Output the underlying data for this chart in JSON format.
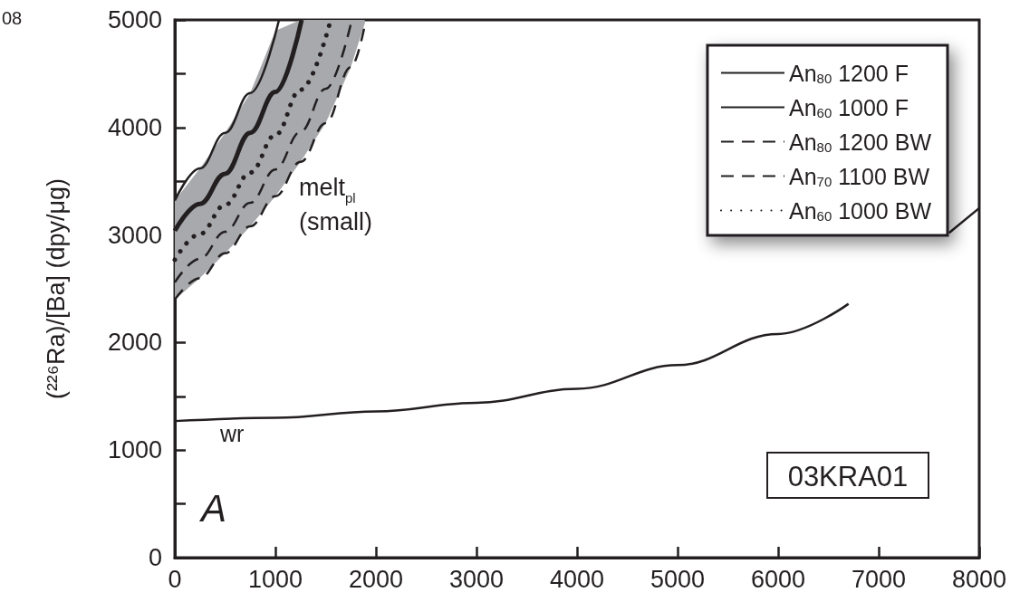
{
  "chart_data": {
    "type": "line",
    "ylabel": "(²²⁶Ra)/[Ba] (dpy/μg)",
    "xlim": [
      0,
      8000
    ],
    "xticks": [
      0,
      1000,
      2000,
      3000,
      4000,
      5000,
      6000,
      7000,
      8000
    ],
    "ylim": [
      0,
      5000
    ],
    "yticks": [
      0,
      {
        "value": 500,
        "label": null
      },
      1000,
      {
        "value": 1500,
        "label": null
      },
      2000,
      {
        "value": 2500,
        "label": null
      },
      3000,
      {
        "value": 3500,
        "label": null
      },
      4000,
      {
        "value": 4500,
        "label": null
      },
      5000
    ],
    "grid": false,
    "legend": "top right",
    "marker": "none",
    "series": [
      {
        "name": "An$_{80}$ 1200 F",
        "color": "#231f20",
        "line_style": "solid",
        "x": [
          0,
          250,
          500,
          750,
          1000,
          1261
        ],
        "values": [
          3040,
          3290,
          3570,
          3950,
          4330,
          5000
        ]
      },
      {
        "name": "An$_{60}$ 1000 F",
        "color": "#231f20",
        "line_style": "solid",
        "x": [
          0,
          250,
          500,
          750,
          1036
        ],
        "values": [
          3320,
          3620,
          3950,
          4320,
          5000
        ]
      },
      {
        "name": "An$_{80}$ 1200 BW",
        "color": "#231f20",
        "line_style": "dashed",
        "x": [
          0,
          250,
          500,
          750,
          1000,
          1250,
          1500,
          1750,
          1900
        ],
        "values": [
          2400,
          2600,
          2830,
          3080,
          3360,
          3680,
          4040,
          4560,
          5000
        ],
        "lower": [
          2400,
          2600,
          2830,
          3080,
          3360,
          3680,
          4040,
          4560,
          5000
        ],
        "upper": [
          3320,
          3620,
          3950,
          4320,
          4900,
          5000,
          5000,
          5000,
          5000
        ]
      },
      {
        "name": "An$_{70}$ 1100 BW",
        "color": "#231f20",
        "line_style": "dashed",
        "x": [
          0,
          250,
          500,
          750,
          1000,
          1250,
          1500,
          1760
        ],
        "values": [
          2560,
          2780,
          3030,
          3300,
          3610,
          3960,
          4360,
          5000
        ]
      },
      {
        "name": "An$_{60}$ 1000 BW",
        "color": "#231f20",
        "line_style": "dotted",
        "x": [
          0,
          250,
          500,
          750,
          1000,
          1250,
          1550
        ],
        "values": [
          2770,
          3010,
          3280,
          3580,
          3930,
          4350,
          5000
        ]
      },
      {
        "color": "#231f20",
        "line_style": "solid",
        "x": [
          0,
          1000,
          2000,
          3000,
          4000,
          5000,
          6000,
          6700,
          7000,
          7500,
          7700,
          8000
        ],
        "values": [
          1270,
          1300,
          1360,
          1440,
          1570,
          1790,
          2080,
          2360,
          null,
          null,
          3020,
          3250
        ]
      }
    ],
    "annotations": [
      "wr",
      "melt$_{pl}$\n(small)",
      "A",
      "03KRA01",
      "08"
    ]
  }
}
